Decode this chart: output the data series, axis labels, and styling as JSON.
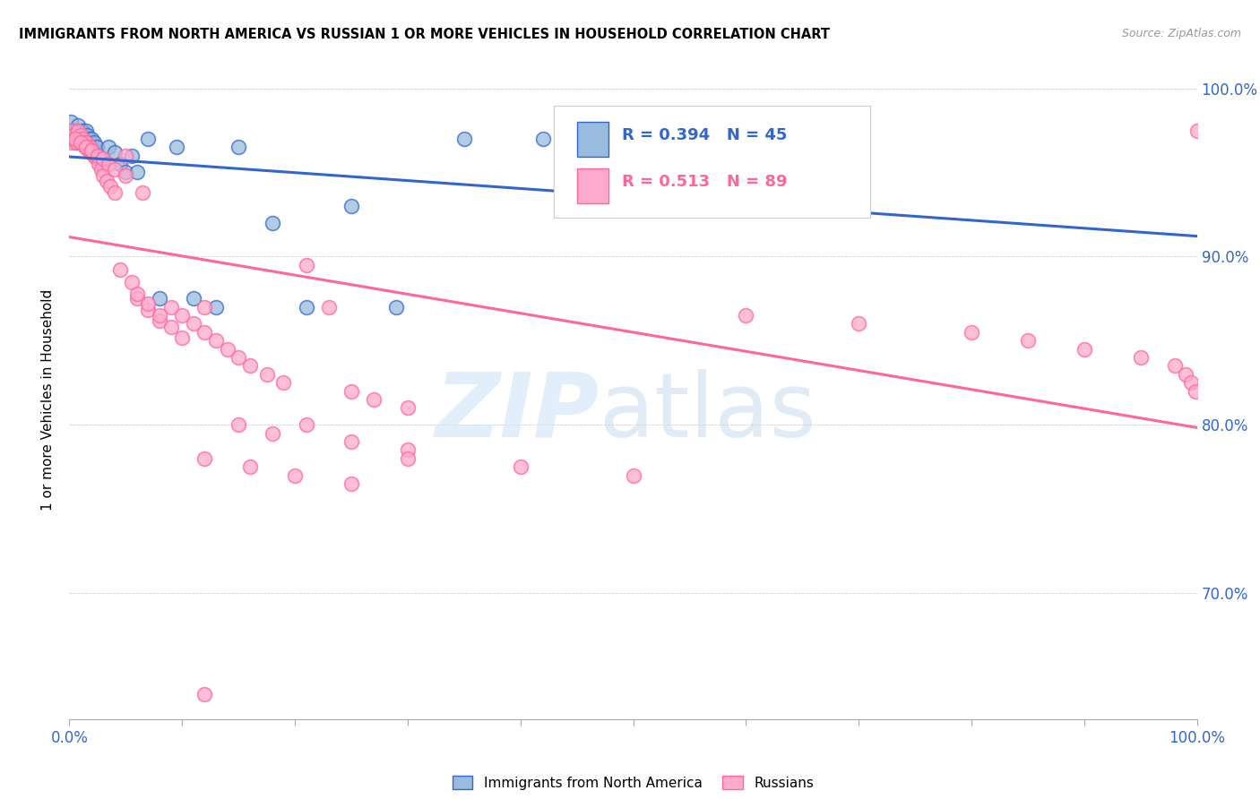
{
  "title": "IMMIGRANTS FROM NORTH AMERICA VS RUSSIAN 1 OR MORE VEHICLES IN HOUSEHOLD CORRELATION CHART",
  "source": "Source: ZipAtlas.com",
  "ylabel": "1 or more Vehicles in Household",
  "legend_label1": "Immigrants from North America",
  "legend_label2": "Russians",
  "R1": 0.394,
  "N1": 45,
  "R2": 0.513,
  "N2": 89,
  "color_blue": "#99BBDD",
  "color_pink": "#FFAACC",
  "line_color_blue": "#3366CC",
  "line_color_pink": "#FF6699",
  "xlim": [
    0.0,
    1.0
  ],
  "ylim": [
    0.625,
    1.005
  ],
  "north_america_x": [
    0.001,
    0.002,
    0.003,
    0.004,
    0.005,
    0.006,
    0.007,
    0.008,
    0.009,
    0.01,
    0.011,
    0.012,
    0.013,
    0.014,
    0.015,
    0.016,
    0.017,
    0.018,
    0.019,
    0.02,
    0.022,
    0.024,
    0.026,
    0.028,
    0.03,
    0.035,
    0.04,
    0.045,
    0.05,
    0.055,
    0.06,
    0.07,
    0.08,
    0.095,
    0.11,
    0.13,
    0.15,
    0.18,
    0.21,
    0.25,
    0.29,
    0.35,
    0.42,
    0.54,
    0.7
  ],
  "north_america_y": [
    0.98,
    0.975,
    0.97,
    0.972,
    0.975,
    0.968,
    0.972,
    0.978,
    0.97,
    0.974,
    0.97,
    0.975,
    0.973,
    0.97,
    0.975,
    0.972,
    0.97,
    0.968,
    0.966,
    0.97,
    0.968,
    0.965,
    0.96,
    0.958,
    0.955,
    0.965,
    0.962,
    0.955,
    0.95,
    0.96,
    0.95,
    0.97,
    0.875,
    0.965,
    0.875,
    0.87,
    0.965,
    0.92,
    0.87,
    0.93,
    0.87,
    0.97,
    0.97,
    0.955,
    0.975
  ],
  "russians_x": [
    0.001,
    0.002,
    0.003,
    0.004,
    0.005,
    0.006,
    0.007,
    0.008,
    0.009,
    0.01,
    0.011,
    0.012,
    0.013,
    0.014,
    0.015,
    0.016,
    0.017,
    0.018,
    0.019,
    0.02,
    0.022,
    0.024,
    0.026,
    0.028,
    0.03,
    0.033,
    0.036,
    0.04,
    0.045,
    0.05,
    0.055,
    0.06,
    0.065,
    0.07,
    0.08,
    0.09,
    0.1,
    0.11,
    0.12,
    0.13,
    0.14,
    0.15,
    0.16,
    0.175,
    0.19,
    0.21,
    0.23,
    0.25,
    0.27,
    0.3,
    0.005,
    0.01,
    0.015,
    0.02,
    0.025,
    0.03,
    0.035,
    0.04,
    0.05,
    0.06,
    0.07,
    0.08,
    0.09,
    0.1,
    0.12,
    0.15,
    0.18,
    0.21,
    0.25,
    0.3,
    0.12,
    0.16,
    0.2,
    0.25,
    0.3,
    0.4,
    0.5,
    0.6,
    0.7,
    0.8,
    0.85,
    0.9,
    0.95,
    0.98,
    0.99,
    0.995,
    0.999,
    1.0,
    0.12
  ],
  "russians_y": [
    0.975,
    0.968,
    0.97,
    0.972,
    0.97,
    0.968,
    0.972,
    0.975,
    0.97,
    0.972,
    0.968,
    0.97,
    0.968,
    0.965,
    0.968,
    0.965,
    0.963,
    0.965,
    0.962,
    0.963,
    0.96,
    0.958,
    0.955,
    0.952,
    0.948,
    0.945,
    0.942,
    0.938,
    0.892,
    0.96,
    0.885,
    0.875,
    0.938,
    0.868,
    0.862,
    0.87,
    0.865,
    0.86,
    0.855,
    0.85,
    0.845,
    0.84,
    0.835,
    0.83,
    0.825,
    0.895,
    0.87,
    0.82,
    0.815,
    0.81,
    0.97,
    0.968,
    0.965,
    0.963,
    0.96,
    0.958,
    0.955,
    0.952,
    0.948,
    0.878,
    0.872,
    0.865,
    0.858,
    0.852,
    0.87,
    0.8,
    0.795,
    0.8,
    0.79,
    0.785,
    0.78,
    0.775,
    0.77,
    0.765,
    0.78,
    0.775,
    0.77,
    0.865,
    0.86,
    0.855,
    0.85,
    0.845,
    0.84,
    0.835,
    0.83,
    0.825,
    0.82,
    0.975,
    0.64
  ]
}
